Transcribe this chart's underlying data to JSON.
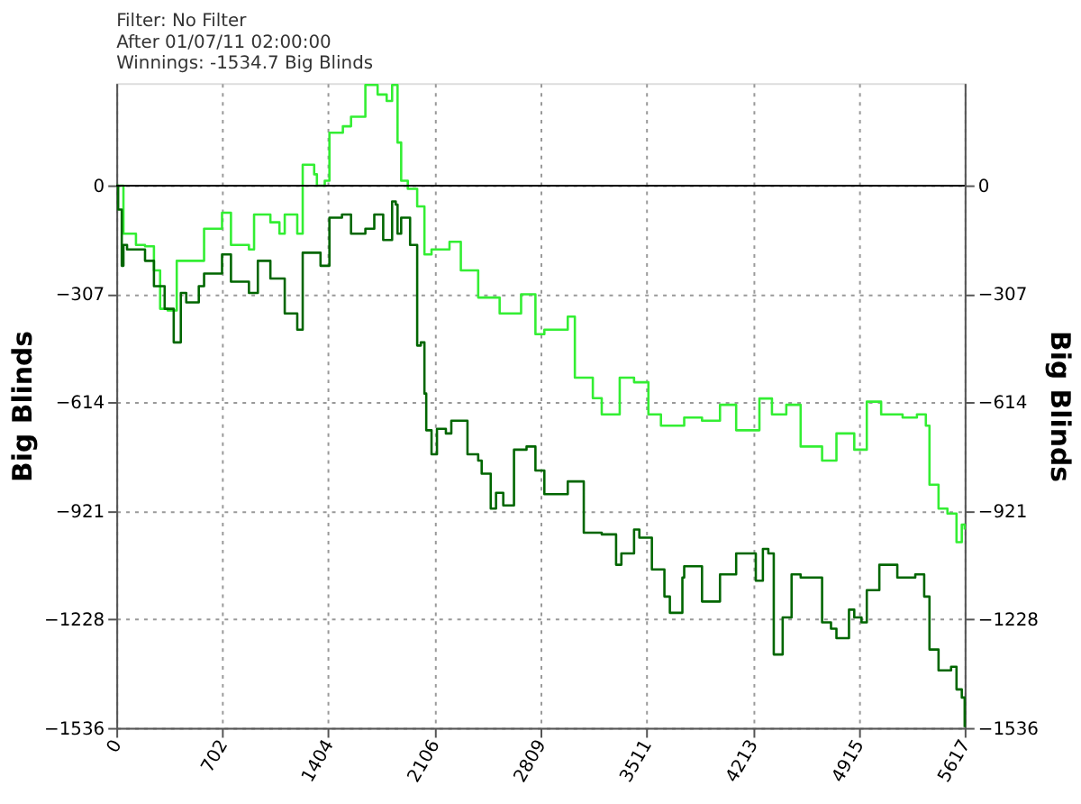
{
  "chart_data": {
    "type": "step",
    "annotations": [
      "Filter: No Filter",
      "After 01/07/11 02:00:00",
      "Winnings: -1534.7 Big Blinds"
    ],
    "ylabel": "Big Blinds",
    "y2label": "Big Blinds",
    "xlim": [
      0,
      5617
    ],
    "xticks": [
      0,
      702,
      1404,
      2106,
      2809,
      3511,
      4213,
      4915,
      5617
    ],
    "ylim": [
      -1536,
      290
    ],
    "yticks": [
      -1536,
      -1228,
      -921,
      -614,
      -307,
      0
    ],
    "y2lim": [
      -1536,
      290
    ],
    "y2ticks": [
      -1536,
      -1228,
      -921,
      -614,
      -307,
      0
    ],
    "grid": true,
    "legend": false,
    "marker": "none",
    "line_style": "solid",
    "ref_lines": [
      {
        "axis": "y",
        "value": 0,
        "color": "#000000"
      }
    ],
    "series": [
      {
        "color": "#33ee33",
        "x": [
          0,
          47,
          130,
          190,
          249,
          290,
          340,
          400,
          427,
          581,
          700,
          759,
          878,
          912,
          1020,
          1080,
          1115,
          1198,
          1234,
          1310,
          1328,
          1380,
          1411,
          1500,
          1554,
          1649,
          1730,
          1790,
          1826,
          1862,
          1886,
          1930,
          1992,
          2040,
          2087,
          2206,
          2281,
          2396,
          2538,
          2680,
          2775,
          2834,
          2989,
          3036,
          3155,
          3214,
          3333,
          3428,
          3523,
          3606,
          3760,
          3878,
          3997,
          4104,
          4258,
          4341,
          4436,
          4531,
          4673,
          4768,
          4886,
          4969,
          5064,
          5206,
          5301,
          5360,
          5384,
          5444,
          5503,
          5563,
          5598,
          5617
        ],
        "values": [
          0,
          -136,
          -168,
          -172,
          -240,
          -349,
          -354,
          -213,
          -213,
          -122,
          -77,
          -168,
          -181,
          -82,
          -104,
          -136,
          -82,
          -136,
          59,
          32,
          0,
          14,
          150,
          168,
          195,
          285,
          258,
          240,
          285,
          122,
          14,
          -9,
          -59,
          -195,
          -181,
          -159,
          -240,
          -317,
          -362,
          -308,
          -421,
          -408,
          -371,
          -544,
          -602,
          -648,
          -544,
          -557,
          -648,
          -680,
          -657,
          -666,
          -621,
          -693,
          -603,
          -648,
          -621,
          -739,
          -779,
          -702,
          -748,
          -612,
          -648,
          -657,
          -648,
          -680,
          -847,
          -915,
          -929,
          -1010,
          -960,
          -974
        ]
      },
      {
        "color": "#006600",
        "x": [
          0,
          12,
          36,
          47,
          71,
          190,
          249,
          320,
          380,
          427,
          463,
          546,
          581,
          700,
          759,
          878,
          937,
          1020,
          1115,
          1198,
          1234,
          1328,
          1352,
          1411,
          1494,
          1554,
          1649,
          1708,
          1767,
          1826,
          1850,
          1862,
          1886,
          1945,
          1992,
          2016,
          2040,
          2052,
          2087,
          2123,
          2182,
          2218,
          2241,
          2325,
          2396,
          2419,
          2479,
          2514,
          2562,
          2633,
          2716,
          2775,
          2834,
          2989,
          3036,
          3095,
          3214,
          3309,
          3344,
          3428,
          3463,
          3546,
          3629,
          3665,
          3748,
          3760,
          3878,
          3997,
          4104,
          4234,
          4281,
          4317,
          4353,
          4412,
          4471,
          4531,
          4673,
          4732,
          4768,
          4851,
          4886,
          4934,
          4969,
          5052,
          5171,
          5290,
          5349,
          5384,
          5444,
          5527,
          5563,
          5598,
          5617
        ],
        "values": [
          0,
          -68,
          -227,
          -168,
          -181,
          -213,
          -285,
          -349,
          -444,
          -304,
          -331,
          -285,
          -249,
          -195,
          -272,
          -304,
          -213,
          -263,
          -362,
          -408,
          -190,
          -190,
          -227,
          -91,
          -82,
          -136,
          -122,
          -82,
          -154,
          -45,
          -54,
          -136,
          -91,
          -168,
          -453,
          -444,
          -589,
          -693,
          -761,
          -689,
          -702,
          -666,
          -666,
          -761,
          -779,
          -816,
          -915,
          -870,
          -906,
          -748,
          -739,
          -807,
          -874,
          -838,
          -838,
          -983,
          -988,
          -1074,
          -1042,
          -974,
          -997,
          -1087,
          -1164,
          -1210,
          -1110,
          -1078,
          -1178,
          -1101,
          -1042,
          -1119,
          -1029,
          -1042,
          -1328,
          -1223,
          -1101,
          -1110,
          -1237,
          -1255,
          -1282,
          -1201,
          -1223,
          -1237,
          -1146,
          -1074,
          -1110,
          -1101,
          -1164,
          -1314,
          -1373,
          -1363,
          -1427,
          -1450,
          -1534
        ]
      }
    ]
  }
}
